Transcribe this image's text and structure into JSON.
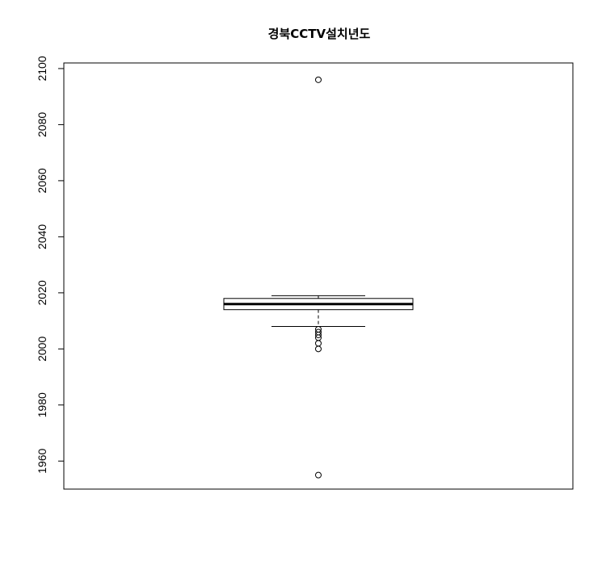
{
  "chart_data": {
    "type": "boxplot",
    "title": "경북CCTV설치년도",
    "xlabel": "",
    "ylabel": "",
    "ylim": [
      1950,
      2102
    ],
    "y_ticks": [
      1960,
      1980,
      2000,
      2020,
      2040,
      2060,
      2080,
      2100
    ],
    "grid": false,
    "box": {
      "lower_whisker": 2008,
      "q1": 2014,
      "median": 2016,
      "q3": 2018,
      "upper_whisker": 2019,
      "outliers": [
        1955,
        2000,
        2002,
        2004,
        2005,
        2006,
        2007,
        2096
      ]
    }
  }
}
